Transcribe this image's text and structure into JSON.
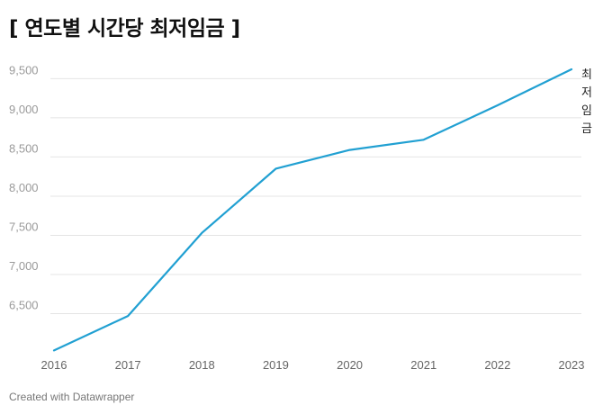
{
  "chart_data": {
    "type": "line",
    "title": "[ 연도별 시간당 최저임금 ]",
    "x": [
      "2016",
      "2017",
      "2018",
      "2019",
      "2020",
      "2021",
      "2022",
      "2023"
    ],
    "series": [
      {
        "name": "최저임금",
        "values": [
          6030,
          6470,
          7530,
          8350,
          8590,
          8720,
          9160,
          9620
        ],
        "color": "#21a0d2"
      }
    ],
    "yticks": [
      6500,
      7000,
      7500,
      8000,
      8500,
      9000,
      9500
    ],
    "ytick_labels": [
      "6,500",
      "7,000",
      "7,500",
      "8,000",
      "8,500",
      "9,000",
      "9,500"
    ],
    "ylim": [
      6000,
      9700
    ],
    "xlabel": "",
    "ylabel": "",
    "grid": true
  },
  "footer": "Created with Datawrapper"
}
